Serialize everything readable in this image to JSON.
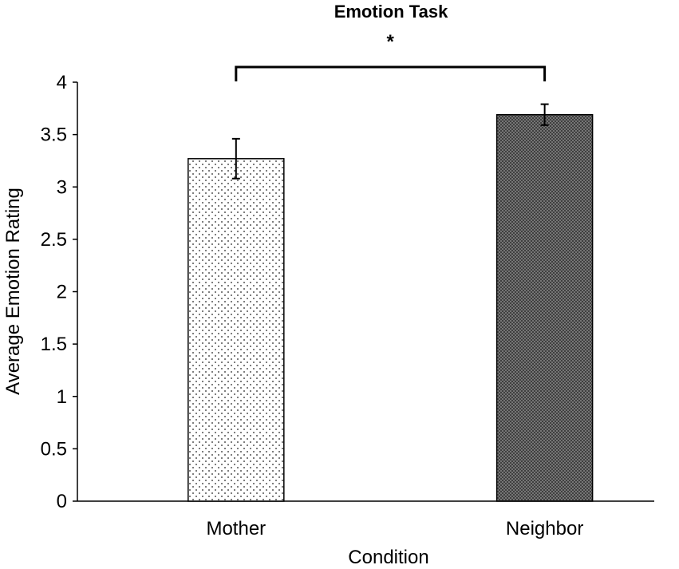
{
  "chart_data": {
    "type": "bar",
    "title": "Emotion Task",
    "xlabel": "Condition",
    "ylabel": "Average Emotion Rating",
    "ylim": [
      0,
      4
    ],
    "yticks": [
      "0",
      "0.5",
      "1",
      "1.5",
      "2",
      "2.5",
      "3",
      "3.5",
      "4"
    ],
    "categories": [
      "Mother",
      "Neighbor"
    ],
    "values": [
      3.27,
      3.69
    ],
    "error_bars": [
      0.19,
      0.1
    ],
    "bar_patterns": [
      "dots",
      "crosshatch"
    ],
    "significance": {
      "between": [
        "Mother",
        "Neighbor"
      ],
      "label": "*"
    },
    "grid": false,
    "legend": "none"
  }
}
